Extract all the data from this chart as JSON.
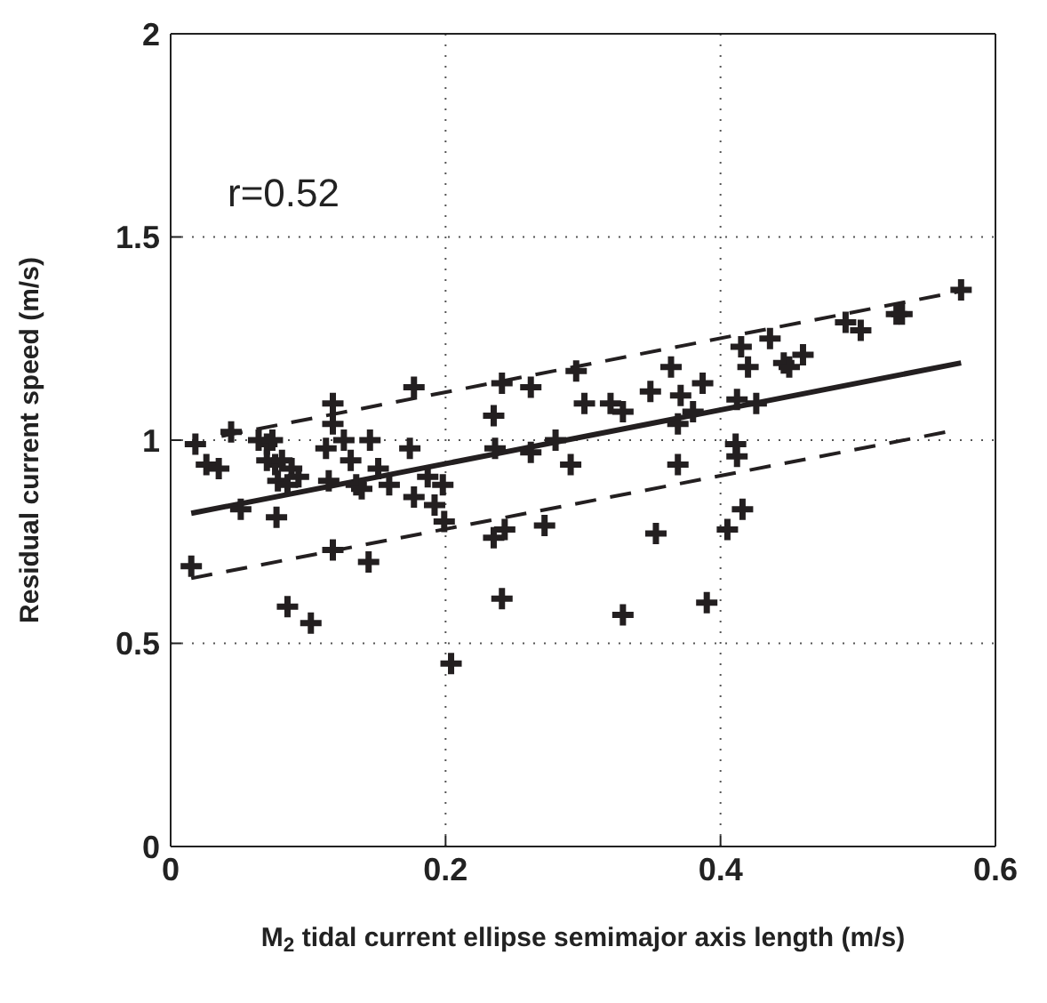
{
  "chart_data": {
    "type": "scatter",
    "xlabel": "M$_{2}$ tidal current ellipse semimajor axis length (m/s)",
    "ylabel": "Residual current speed (m/s)",
    "annotations": [
      "r=0.52"
    ],
    "xlim": [
      0,
      0.6
    ],
    "xticks": [
      0,
      0.2,
      0.4,
      0.6
    ],
    "ylim": [
      0,
      2
    ],
    "yticks": [
      0,
      0.5,
      1,
      1.5,
      2
    ],
    "grid": true,
    "series": [
      {
        "color": "#231f20",
        "marker": "cross",
        "x": [
          0.018,
          0.026,
          0.035,
          0.044,
          0.015,
          0.051,
          0.064,
          0.07,
          0.074,
          0.076,
          0.078,
          0.07,
          0.081,
          0.085,
          0.088,
          0.093,
          0.077,
          0.085,
          0.102,
          0.113,
          0.118,
          0.118,
          0.115,
          0.118,
          0.126,
          0.131,
          0.135,
          0.145,
          0.151,
          0.139,
          0.144,
          0.159,
          0.177,
          0.174,
          0.177,
          0.187,
          0.192,
          0.199,
          0.198,
          0.204,
          0.241,
          0.235,
          0.262,
          0.295,
          0.364,
          0.349,
          0.301,
          0.32,
          0.329,
          0.371,
          0.387,
          0.38,
          0.369,
          0.236,
          0.262,
          0.28,
          0.291,
          0.369,
          0.235,
          0.243,
          0.272,
          0.353,
          0.241,
          0.329,
          0.39,
          0.405,
          0.415,
          0.42,
          0.436,
          0.446,
          0.45,
          0.46,
          0.491,
          0.502,
          0.528,
          0.532,
          0.575,
          0.412,
          0.426,
          0.411,
          0.412,
          0.416
        ],
        "values": [
          0.99,
          0.94,
          0.93,
          1.02,
          0.69,
          0.83,
          1.0,
          0.99,
          1.0,
          0.94,
          0.9,
          0.95,
          0.95,
          0.89,
          0.93,
          0.91,
          0.81,
          0.59,
          0.55,
          0.98,
          1.09,
          1.04,
          0.9,
          0.73,
          1.0,
          0.95,
          0.89,
          1.0,
          0.93,
          0.88,
          0.7,
          0.89,
          1.13,
          0.98,
          0.86,
          0.91,
          0.84,
          0.8,
          0.89,
          0.45,
          1.14,
          1.06,
          1.13,
          1.17,
          1.18,
          1.12,
          1.09,
          1.09,
          1.07,
          1.11,
          1.14,
          1.07,
          1.04,
          0.98,
          0.97,
          1.0,
          0.94,
          0.94,
          0.76,
          0.78,
          0.79,
          0.77,
          0.61,
          0.57,
          0.6,
          0.78,
          1.23,
          1.18,
          1.25,
          1.19,
          1.18,
          1.21,
          1.29,
          1.27,
          1.31,
          1.31,
          1.37,
          1.1,
          1.09,
          0.99,
          0.96,
          0.83
        ]
      },
      {
        "type": "line",
        "color": "#231f20",
        "line_style": "solid",
        "x": [
          0.015,
          0.575
        ],
        "values": [
          0.82,
          1.19
        ]
      },
      {
        "type": "line",
        "color": "#231f20",
        "line_style": "dashed",
        "x": [
          0.037,
          0.58
        ],
        "values": [
          1.01,
          1.37
        ]
      },
      {
        "type": "line",
        "color": "#231f20",
        "line_style": "dashed",
        "x": [
          0.015,
          0.564
        ],
        "values": [
          0.66,
          1.02
        ]
      }
    ]
  }
}
